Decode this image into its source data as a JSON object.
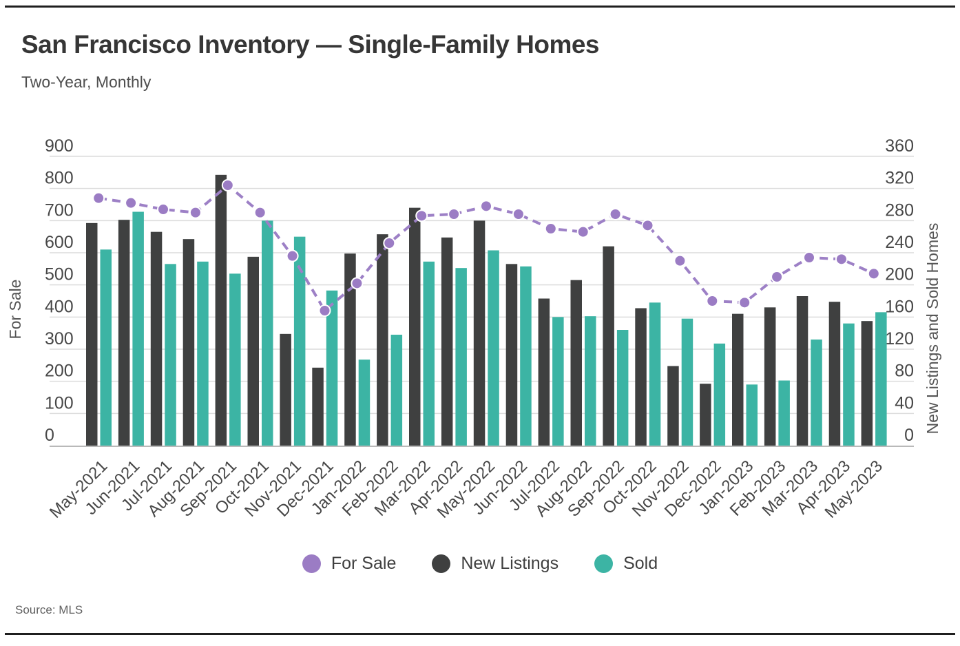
{
  "header": {
    "title": "San Francisco Inventory — Single-Family Homes",
    "subtitle": "Two-Year, Monthly"
  },
  "footer": {
    "source": "Source: MLS"
  },
  "chart_data": {
    "type": "combo",
    "title": "San Francisco Inventory — Single-Family Homes",
    "subtitle": "Two-Year, Monthly",
    "source": "Source: MLS",
    "grid": true,
    "legend_position": "bottom",
    "categories": [
      "May-2021",
      "Jun-2021",
      "Jul-2021",
      "Aug-2021",
      "Sep-2021",
      "Oct-2021",
      "Nov-2021",
      "Dec-2021",
      "Jan-2022",
      "Feb-2022",
      "Mar-2022",
      "Apr-2022",
      "May-2022",
      "Jun-2022",
      "Jul-2022",
      "Aug-2022",
      "Sep-2022",
      "Oct-2022",
      "Nov-2022",
      "Dec-2022",
      "Jan-2023",
      "Feb-2023",
      "Mar-2023",
      "Apr-2023",
      "May-2023"
    ],
    "series": [
      {
        "name": "For Sale",
        "type": "line",
        "axis": "left",
        "style": "dashed-with-round-markers",
        "color": "#9d80c6",
        "marker_color": "#9b7cc4",
        "values": [
          770,
          755,
          735,
          725,
          810,
          725,
          590,
          420,
          505,
          630,
          715,
          720,
          745,
          720,
          675,
          665,
          720,
          685,
          575,
          450,
          445,
          525,
          585,
          580,
          535
        ]
      },
      {
        "name": "New Listings",
        "type": "bar",
        "axis": "right",
        "color": "#3f4040",
        "values": [
          277,
          281,
          266,
          257,
          337,
          235,
          139,
          97,
          239,
          263,
          296,
          259,
          280,
          226,
          183,
          206,
          248,
          171,
          99,
          77,
          164,
          172,
          186,
          179,
          155
        ]
      },
      {
        "name": "Sold",
        "type": "bar",
        "axis": "right",
        "color": "#3cb4a4",
        "values": [
          244,
          291,
          226,
          229,
          214,
          280,
          260,
          193,
          107,
          138,
          229,
          221,
          243,
          223,
          160,
          161,
          144,
          178,
          158,
          127,
          76,
          81,
          132,
          152,
          166
        ]
      }
    ],
    "left_axis": {
      "title": "For Sale",
      "min": 0,
      "max": 900,
      "tick_step": 100,
      "ticks": [
        900,
        800,
        700,
        600,
        500,
        400,
        300,
        200,
        100,
        0
      ]
    },
    "right_axis": {
      "title": "New Listings and Sold Homes",
      "min": 0,
      "max": 360,
      "tick_step": 40,
      "ticks": [
        360,
        320,
        280,
        240,
        200,
        160,
        120,
        80,
        40,
        0
      ]
    }
  },
  "colors": {
    "background": "#ffffff",
    "border": "#1f1f1f",
    "gridline": "#dcdcdc",
    "axis_line": "#b9b9b9",
    "tick_label": "#474747",
    "axis_title": "#555555",
    "title": "#363636",
    "subtitle": "#4f4f4f",
    "source": "#616161"
  }
}
